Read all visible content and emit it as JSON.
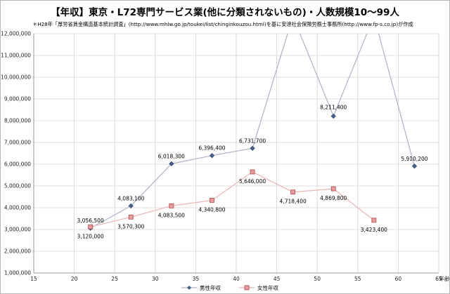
{
  "title": "【年収】東京・L72専門サービス業(他に分類されないもの)・人数規模10～99人",
  "subtitle": "＊H28年「厚労省賃金構造基本統計調査」(http://www.mhlw.go.jp/toukei/list/chinginkouzou.html)を基に安達社会保険労務士事務所(http://www.fp-s.co.jp)が作成",
  "chart_data": {
    "type": "line",
    "xlabel": "年齢",
    "ylabel": "",
    "xlim": [
      15,
      65
    ],
    "ylim": [
      1000000,
      12000000
    ],
    "x_ticks": [
      "15",
      "20",
      "25",
      "30",
      "35",
      "40",
      "45",
      "50",
      "55",
      "60",
      "65"
    ],
    "y_ticks": [
      "1,000,000",
      "2,000,000",
      "3,000,000",
      "4,000,000",
      "5,000,000",
      "6,000,000",
      "7,000,000",
      "8,000,000",
      "9,000,000",
      "10,000,000",
      "11,000,000",
      "12,000,000"
    ],
    "grid": true,
    "legend_position": "bottom",
    "series": [
      {
        "name": "男性年収",
        "color": "#4a6a9a",
        "marker": "diamond",
        "x": [
          22,
          27,
          32,
          37,
          42,
          47,
          52,
          57,
          62
        ],
        "y": [
          3056500,
          4083100,
          6018300,
          6396400,
          6731700,
          12800000,
          8211400,
          12800000,
          5910200
        ],
        "labels": [
          "3,056,500",
          "4,083,100",
          "6,018,300",
          "6,396,400",
          "6,731,700",
          "",
          "8,211,400",
          "",
          "5,910,200"
        ]
      },
      {
        "name": "女性年収",
        "color": "#e8a0a0",
        "marker": "square",
        "x": [
          22,
          27,
          32,
          37,
          42,
          47,
          52,
          57
        ],
        "y": [
          3120000,
          3570300,
          4083500,
          4340800,
          5646000,
          4718400,
          4869800,
          3423400
        ],
        "labels": [
          "3,120,000",
          "3,570,300",
          "4,083,500",
          "4,340,800",
          "5,646,000",
          "4,718,400",
          "4,869,800",
          "3,423,400"
        ]
      }
    ]
  }
}
